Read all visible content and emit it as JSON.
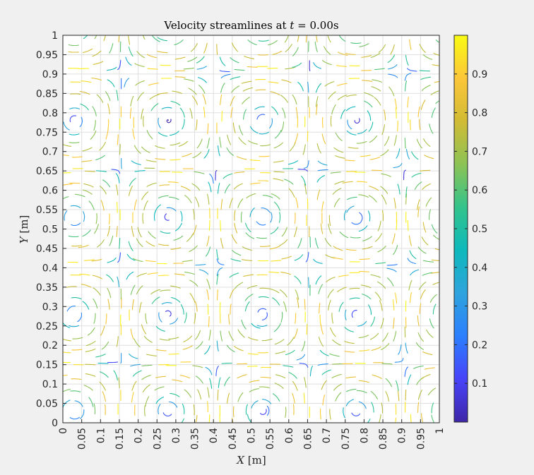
{
  "chart_data": {
    "type": "streamline",
    "title": "Velocity streamlines at t = 0.00s",
    "title_parts": [
      "Velocity streamlines at ",
      "t",
      " = 0.00",
      "s"
    ],
    "xlabel": "X [m]",
    "xlabel_parts": [
      "X",
      " [m]"
    ],
    "ylabel": "Y [m]",
    "ylabel_parts": [
      "Y",
      " [m]"
    ],
    "xlim": [
      0,
      1
    ],
    "ylim": [
      0,
      1
    ],
    "grid": true,
    "x_ticks": [
      "0",
      "0.05",
      "0.1",
      "0.15",
      "0.2",
      "0.25",
      "0.3",
      "0.35",
      "0.4",
      "0.45",
      "0.5",
      "0.55",
      "0.6",
      "0.65",
      "0.7",
      "0.75",
      "0.8",
      "0.85",
      "0.9",
      "0.95",
      "1"
    ],
    "y_ticks": [
      "0",
      "0.05",
      "0.1",
      "0.15",
      "0.2",
      "0.25",
      "0.3",
      "0.35",
      "0.4",
      "0.45",
      "0.5",
      "0.55",
      "0.6",
      "0.65",
      "0.7",
      "0.75",
      "0.8",
      "0.85",
      "0.9",
      "0.95",
      "1"
    ],
    "field": {
      "vortex_centers": [
        {
          "x": 0.03,
          "y": 0.03
        },
        {
          "x": 0.53,
          "y": 0.03
        },
        {
          "x": 0.03,
          "y": 0.53
        },
        {
          "x": 0.53,
          "y": 0.53
        },
        {
          "x": 0.03,
          "y": 1.03
        },
        {
          "x": 0.53,
          "y": 1.03
        },
        {
          "x": 1.03,
          "y": 0.03
        },
        {
          "x": 1.03,
          "y": 0.53
        },
        {
          "x": 1.03,
          "y": 1.03
        }
      ],
      "period": 0.5,
      "speed_range": [
        0,
        1
      ]
    },
    "colorbar": {
      "colormap": "parula",
      "range": [
        0,
        1
      ],
      "ticks": [
        "0.1",
        "0.2",
        "0.3",
        "0.4",
        "0.5",
        "0.6",
        "0.7",
        "0.8",
        "0.9"
      ],
      "stops": [
        "#3e26a8",
        "#4743f8",
        "#2c7ffe",
        "#2ea3dd",
        "#0eb9bc",
        "#33c38b",
        "#8cc355",
        "#d1bb34",
        "#fcc639",
        "#f9fb14"
      ]
    }
  }
}
